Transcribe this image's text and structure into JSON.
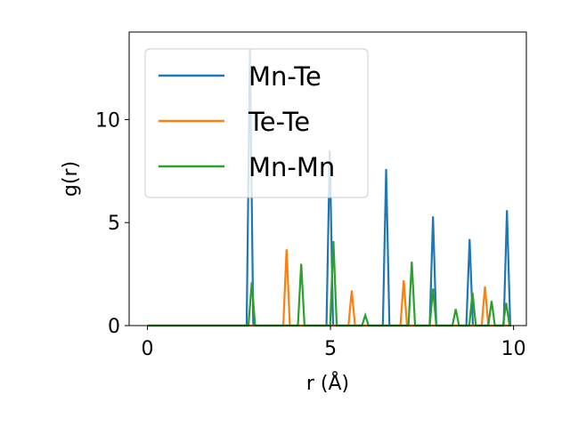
{
  "chart_data": {
    "type": "line",
    "title": "",
    "xlabel": "r (Å)",
    "ylabel": "g(r)",
    "xlim": [
      -0.5,
      10.35
    ],
    "ylim": [
      0,
      14.25
    ],
    "xticks": [
      0,
      5,
      10
    ],
    "yticks": [
      0,
      5,
      10
    ],
    "xtick_labels": [
      "0",
      "5",
      "10"
    ],
    "ytick_labels": [
      "0",
      "5",
      "10"
    ],
    "grid": false,
    "legend_position": "upper left",
    "series": [
      {
        "name": "Mn-Te",
        "color": "#1f77b4",
        "peaks": [
          [
            2.8,
            13.4
          ],
          [
            4.98,
            8.5
          ],
          [
            6.52,
            7.6
          ],
          [
            7.8,
            5.3
          ],
          [
            8.8,
            4.2
          ],
          [
            9.82,
            5.6
          ]
        ]
      },
      {
        "name": "Te-Te",
        "color": "#ff7f0e",
        "peaks": [
          [
            3.8,
            3.7
          ],
          [
            5.58,
            1.7
          ],
          [
            7.0,
            2.2
          ],
          [
            9.22,
            1.9
          ]
        ]
      },
      {
        "name": "Mn-Mn",
        "color": "#2ca02c",
        "peaks": [
          [
            2.85,
            2.1
          ],
          [
            4.2,
            3.0
          ],
          [
            5.08,
            4.1
          ],
          [
            5.95,
            0.5
          ],
          [
            7.22,
            3.1
          ],
          [
            7.8,
            1.8
          ],
          [
            8.42,
            0.8
          ],
          [
            8.88,
            1.6
          ],
          [
            9.4,
            1.2
          ],
          [
            9.8,
            1.1
          ]
        ]
      }
    ]
  }
}
